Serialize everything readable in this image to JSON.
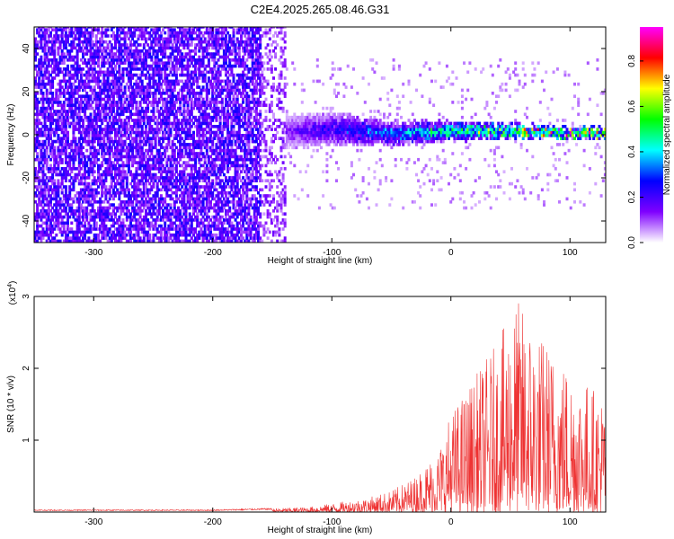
{
  "title": "C2E4.2025.265.08.46.G31",
  "chart_data": [
    {
      "type": "heatmap",
      "xlabel": "Height of straight line (km)",
      "ylabel": "Frequency (Hz)",
      "xlim": [
        -350,
        130
      ],
      "ylim": [
        -50,
        50
      ],
      "x_ticks": [
        -300,
        -200,
        -100,
        0,
        100
      ],
      "y_ticks": [
        -40,
        -20,
        0,
        20,
        40
      ],
      "colorbar": {
        "label": "Normalized spectral amplitude",
        "range": [
          0,
          0.95
        ],
        "ticks": [
          "0.0",
          "0.2",
          "0.4",
          "0.6",
          "0.8"
        ],
        "tick_values": [
          0.0,
          0.2,
          0.4,
          0.6,
          0.8
        ],
        "colormap": [
          "#ffffff",
          "#7f00ff",
          "#0000ff",
          "#00ffff",
          "#00ff00",
          "#ffff00",
          "#ff0000",
          "#ff00ff"
        ]
      },
      "signal_track": {
        "description_x": [
          -165,
          -100,
          -50,
          0,
          50,
          100,
          130
        ],
        "center_y": [
          0,
          2,
          0,
          1,
          1,
          0,
          0
        ],
        "half_width_y": [
          8,
          7,
          5,
          4,
          3,
          2,
          2
        ]
      }
    },
    {
      "type": "line",
      "xlabel": "Height of straight line (km)",
      "ylabel": "SNR (10 * v/v)",
      "y_multiplier_label": "(x10",
      "y_multiplier_exponent": "4",
      "y_multiplier_close": ")",
      "xlim": [
        -350,
        130
      ],
      "ylim": [
        0,
        3
      ],
      "x_ticks": [
        -300,
        -200,
        -100,
        0,
        100
      ],
      "y_ticks": [
        1,
        2,
        3
      ],
      "series_color": "#ee3333",
      "envelope": {
        "x": [
          -350,
          -200,
          -150,
          -120,
          -100,
          -70,
          -50,
          -30,
          -10,
          0,
          20,
          40,
          55,
          70,
          90,
          110,
          130
        ],
        "y": [
          0.03,
          0.03,
          0.05,
          0.07,
          0.12,
          0.2,
          0.3,
          0.5,
          0.9,
          1.4,
          1.9,
          2.4,
          3.0,
          2.6,
          2.2,
          1.9,
          1.6
        ]
      }
    }
  ]
}
